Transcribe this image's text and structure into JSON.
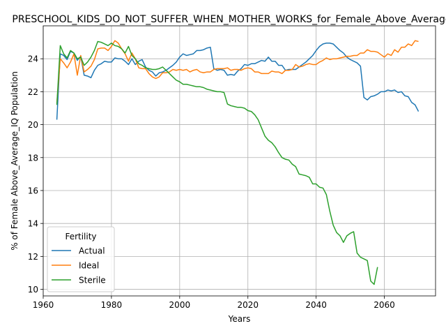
{
  "chart_data": {
    "type": "line",
    "title": "PRESCHOOL_KIDS_DO_NOT_SUFFER_WHEN_MOTHER_WORKS_for_Female_Above_Average_IQ",
    "xlabel": "Years",
    "ylabel": "% of Female Above_Average_IQ Population",
    "xlim": [
      1960,
      2075
    ],
    "ylim": [
      9.6,
      26.0
    ],
    "xticks": [
      1960,
      1980,
      2000,
      2020,
      2040,
      2060
    ],
    "yticks": [
      10,
      12,
      14,
      16,
      18,
      20,
      22,
      24
    ],
    "grid": true,
    "legend": {
      "title": "Fertility",
      "position": "lower-left"
    },
    "series": [
      {
        "name": "Actual",
        "color": "#1f77b4",
        "x": [
          1964,
          1965,
          1966,
          1967,
          1968,
          1969,
          1970,
          1971,
          1972,
          1973,
          1974,
          1975,
          1976,
          1977,
          1978,
          1979,
          1980,
          1981,
          1982,
          1983,
          1984,
          1985,
          1986,
          1987,
          1988,
          1989,
          1990,
          1991,
          1992,
          1993,
          1994,
          1995,
          1996,
          1997,
          1998,
          1999,
          2000,
          2001,
          2002,
          2003,
          2004,
          2005,
          2006,
          2007,
          2008,
          2009,
          2010,
          2011,
          2012,
          2013,
          2014,
          2015,
          2016,
          2017,
          2018,
          2019,
          2020,
          2021,
          2022,
          2023,
          2024,
          2025,
          2026,
          2027,
          2028,
          2029,
          2030,
          2031,
          2032,
          2033,
          2034,
          2035,
          2036,
          2037,
          2038,
          2039,
          2040,
          2041,
          2042,
          2043,
          2044,
          2045,
          2046,
          2047,
          2048,
          2049,
          2050,
          2051,
          2052,
          2053,
          2054,
          2055,
          2056,
          2057,
          2058,
          2059,
          2060,
          2061,
          2062,
          2063,
          2064,
          2065,
          2066,
          2067,
          2068,
          2069,
          2070
        ],
        "y": [
          20.3,
          24.3,
          24.2,
          23.95,
          24.45,
          24.35,
          23.9,
          24.15,
          23.0,
          22.95,
          22.85,
          23.3,
          23.6,
          23.7,
          23.85,
          23.8,
          23.8,
          24.05,
          24.0,
          24.0,
          23.85,
          23.65,
          24.0,
          23.65,
          23.85,
          23.95,
          23.5,
          23.3,
          23.2,
          22.95,
          23.15,
          23.2,
          23.3,
          23.45,
          23.6,
          23.8,
          24.1,
          24.3,
          24.2,
          24.25,
          24.3,
          24.5,
          24.5,
          24.55,
          24.65,
          24.7,
          23.4,
          23.3,
          23.35,
          23.3,
          23.0,
          23.05,
          23.0,
          23.25,
          23.4,
          23.65,
          23.6,
          23.7,
          23.7,
          23.8,
          23.9,
          23.85,
          24.1,
          23.85,
          23.85,
          23.6,
          23.6,
          23.3,
          23.35,
          23.35,
          23.35,
          23.5,
          23.65,
          23.8,
          24.0,
          24.2,
          24.5,
          24.75,
          24.9,
          24.95,
          24.95,
          24.9,
          24.7,
          24.5,
          24.35,
          24.1,
          23.95,
          23.85,
          23.75,
          23.55,
          21.65,
          21.5,
          21.7,
          21.75,
          21.85,
          22.0,
          22.0,
          22.1,
          22.05,
          22.1,
          21.95,
          22.0,
          21.75,
          21.7,
          21.35,
          21.2,
          20.8
        ]
      },
      {
        "name": "Ideal",
        "color": "#ff7f0e",
        "x": [
          1964,
          1965,
          1966,
          1967,
          1968,
          1969,
          1970,
          1971,
          1972,
          1973,
          1974,
          1975,
          1976,
          1977,
          1978,
          1979,
          1980,
          1981,
          1982,
          1983,
          1984,
          1985,
          1986,
          1987,
          1988,
          1989,
          1990,
          1991,
          1992,
          1993,
          1994,
          1995,
          1996,
          1997,
          1998,
          1999,
          2000,
          2001,
          2002,
          2003,
          2004,
          2005,
          2006,
          2007,
          2008,
          2009,
          2010,
          2011,
          2012,
          2013,
          2014,
          2015,
          2016,
          2017,
          2018,
          2019,
          2020,
          2021,
          2022,
          2023,
          2024,
          2025,
          2026,
          2027,
          2028,
          2029,
          2030,
          2031,
          2032,
          2033,
          2034,
          2035,
          2036,
          2037,
          2038,
          2039,
          2040,
          2041,
          2042,
          2043,
          2044,
          2045,
          2046,
          2047,
          2048,
          2049,
          2050,
          2051,
          2052,
          2053,
          2054,
          2055,
          2056,
          2057,
          2058,
          2059,
          2060,
          2061,
          2062,
          2063,
          2064,
          2065,
          2066,
          2067,
          2068,
          2069,
          2070
        ],
        "y": [
          21.3,
          24.0,
          23.75,
          23.45,
          23.8,
          24.3,
          23.0,
          24.2,
          23.2,
          23.35,
          23.55,
          23.95,
          24.6,
          24.65,
          24.65,
          24.5,
          24.75,
          25.1,
          24.95,
          24.6,
          24.3,
          23.85,
          24.35,
          24.0,
          23.45,
          23.4,
          23.4,
          23.1,
          22.9,
          22.8,
          22.9,
          23.15,
          23.15,
          23.2,
          23.35,
          23.3,
          23.35,
          23.3,
          23.35,
          23.2,
          23.3,
          23.35,
          23.2,
          23.15,
          23.2,
          23.2,
          23.35,
          23.4,
          23.4,
          23.4,
          23.45,
          23.3,
          23.35,
          23.35,
          23.3,
          23.4,
          23.45,
          23.4,
          23.2,
          23.2,
          23.1,
          23.1,
          23.1,
          23.25,
          23.2,
          23.2,
          23.1,
          23.3,
          23.3,
          23.35,
          23.65,
          23.5,
          23.55,
          23.65,
          23.7,
          23.65,
          23.65,
          23.8,
          23.9,
          24.05,
          23.95,
          24.0,
          24.0,
          24.05,
          24.1,
          24.15,
          24.15,
          24.2,
          24.2,
          24.35,
          24.35,
          24.55,
          24.45,
          24.45,
          24.4,
          24.25,
          24.1,
          24.3,
          24.2,
          24.55,
          24.4,
          24.7,
          24.7,
          24.9,
          24.8,
          25.1,
          25.05
        ]
      },
      {
        "name": "Sterile",
        "color": "#2ca02c",
        "x": [
          1964,
          1965,
          1966,
          1967,
          1968,
          1969,
          1970,
          1971,
          1972,
          1973,
          1974,
          1975,
          1976,
          1977,
          1978,
          1979,
          1980,
          1981,
          1982,
          1983,
          1984,
          1985,
          1986,
          1987,
          1988,
          1989,
          1990,
          1991,
          1992,
          1993,
          1994,
          1995,
          1996,
          1997,
          1998,
          1999,
          2000,
          2001,
          2002,
          2003,
          2004,
          2005,
          2006,
          2007,
          2008,
          2009,
          2010,
          2011,
          2012,
          2013,
          2014,
          2015,
          2016,
          2017,
          2018,
          2019,
          2020,
          2021,
          2022,
          2023,
          2024,
          2025,
          2026,
          2027,
          2028,
          2029,
          2030,
          2031,
          2032,
          2033,
          2034,
          2035,
          2036,
          2037,
          2038,
          2039,
          2040,
          2041,
          2042,
          2043,
          2044,
          2045,
          2046,
          2047,
          2048,
          2049,
          2050,
          2051,
          2052,
          2053,
          2054,
          2055,
          2056,
          2057,
          2058
        ],
        "y": [
          21.2,
          24.8,
          24.3,
          24.05,
          24.5,
          24.35,
          24.0,
          24.1,
          23.6,
          23.8,
          24.1,
          24.5,
          25.05,
          25.0,
          24.9,
          24.8,
          24.95,
          24.8,
          24.75,
          24.6,
          24.35,
          24.75,
          24.2,
          24.0,
          23.7,
          23.6,
          23.45,
          23.4,
          23.35,
          23.35,
          23.4,
          23.5,
          23.3,
          23.1,
          22.9,
          22.7,
          22.6,
          22.45,
          22.45,
          22.4,
          22.35,
          22.3,
          22.3,
          22.25,
          22.15,
          22.1,
          22.05,
          22.0,
          22.0,
          21.95,
          21.25,
          21.15,
          21.1,
          21.05,
          21.05,
          21.0,
          20.85,
          20.8,
          20.6,
          20.3,
          19.8,
          19.3,
          19.05,
          18.9,
          18.65,
          18.3,
          18.0,
          17.9,
          17.85,
          17.6,
          17.45,
          17.0,
          16.95,
          16.9,
          16.8,
          16.4,
          16.4,
          16.2,
          16.15,
          15.75,
          14.75,
          13.9,
          13.45,
          13.25,
          12.85,
          13.25,
          13.4,
          13.5,
          12.2,
          11.95,
          11.85,
          11.75,
          10.5,
          10.3,
          11.35
        ]
      }
    ]
  }
}
